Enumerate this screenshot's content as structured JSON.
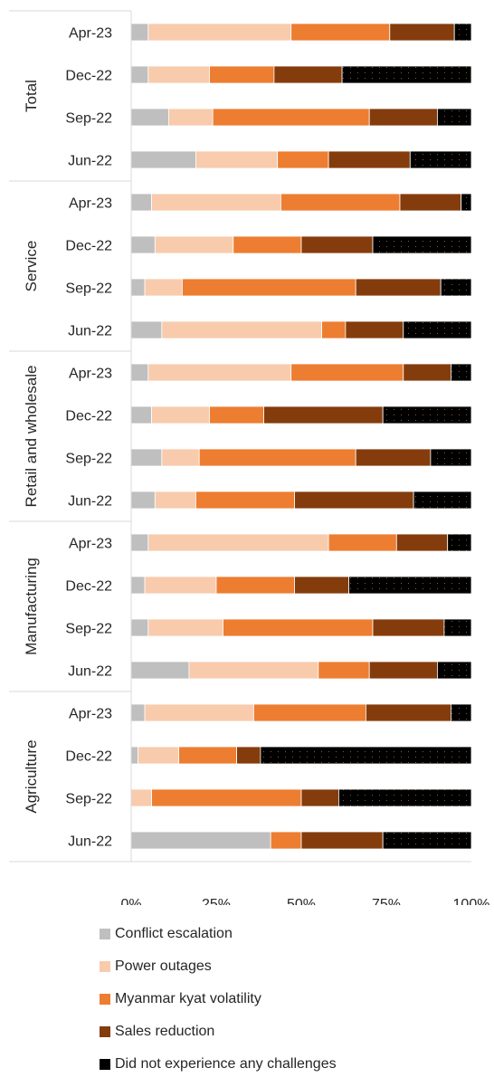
{
  "chart_data": {
    "type": "bar",
    "orientation": "horizontal",
    "stacked": "100%",
    "title": "",
    "xlabel": "",
    "ylabel": "",
    "xlim": [
      0,
      100
    ],
    "x_tick_labels": [
      "0%",
      "25%",
      "50%",
      "75%",
      "100%"
    ],
    "groups": [
      {
        "name": "Total",
        "categories": [
          "Apr-23",
          "Dec-22",
          "Sep-22",
          "Jun-22"
        ]
      },
      {
        "name": "Service",
        "categories": [
          "Apr-23",
          "Dec-22",
          "Sep-22",
          "Jun-22"
        ]
      },
      {
        "name": "Retail and wholesale",
        "categories": [
          "Apr-23",
          "Dec-22",
          "Sep-22",
          "Jun-22"
        ]
      },
      {
        "name": "Manufacturing",
        "categories": [
          "Apr-23",
          "Dec-22",
          "Sep-22",
          "Jun-22"
        ]
      },
      {
        "name": "Agriculture",
        "categories": [
          "Apr-23",
          "Dec-22",
          "Sep-22",
          "Jun-22"
        ]
      }
    ],
    "series": [
      {
        "name": "Conflict escalation",
        "color": "#bfbfbf",
        "values": [
          5,
          5,
          11,
          19,
          6,
          7,
          4,
          9,
          5,
          6,
          9,
          7,
          5,
          4,
          5,
          17,
          4,
          2,
          0,
          41
        ]
      },
      {
        "name": "Power outages",
        "color": "#f8cbad",
        "values": [
          42,
          18,
          13,
          24,
          38,
          23,
          11,
          47,
          42,
          17,
          11,
          12,
          53,
          21,
          22,
          38,
          32,
          12,
          6,
          0
        ]
      },
      {
        "name": "Myanmar kyat volatility",
        "color": "#ed7d31",
        "values": [
          29,
          19,
          46,
          15,
          35,
          20,
          51,
          7,
          33,
          16,
          46,
          29,
          20,
          23,
          44,
          15,
          33,
          17,
          44,
          9
        ]
      },
      {
        "name": "Sales reduction",
        "color": "#843c0c",
        "values": [
          19,
          20,
          20,
          24,
          18,
          21,
          25,
          17,
          14,
          35,
          22,
          35,
          15,
          16,
          21,
          20,
          25,
          7,
          11,
          24
        ]
      },
      {
        "name": "Did not experience any challenges",
        "color": "#000000",
        "values": [
          5,
          38,
          10,
          18,
          3,
          29,
          9,
          20,
          6,
          26,
          12,
          17,
          7,
          36,
          8,
          10,
          6,
          62,
          39,
          26
        ]
      }
    ],
    "grid": false,
    "legend_position": "bottom"
  }
}
